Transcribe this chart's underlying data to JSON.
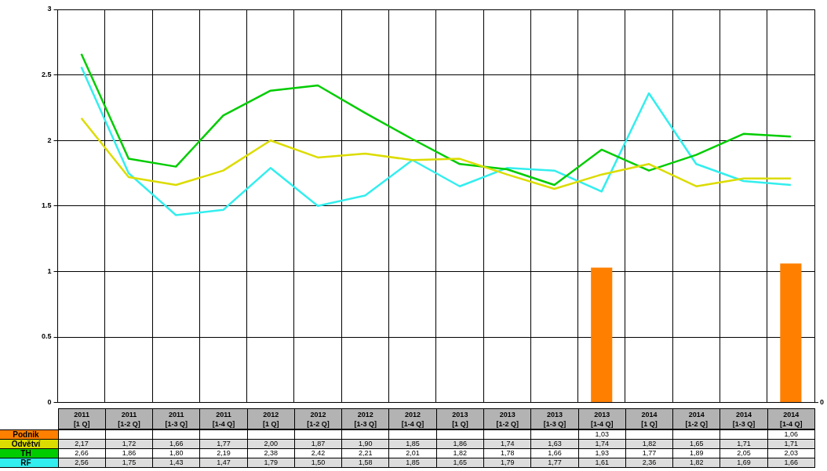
{
  "chart_data": {
    "type": "line",
    "categories": [
      "2011 [1 Q]",
      "2011 [1-2 Q]",
      "2011 [1-3 Q]",
      "2011 [1-4 Q]",
      "2012 [1 Q]",
      "2012 [1-2 Q]",
      "2012 [1-3 Q]",
      "2012 [1-4 Q]",
      "2013 [1 Q]",
      "2013 [1-2 Q]",
      "2013 [1-3 Q]",
      "2013 [1-4 Q]",
      "2014 [1 Q]",
      "2014 [1-2 Q]",
      "2014 [1-3 Q]",
      "2014 [1-4 Q]"
    ],
    "series": [
      {
        "name": "Podnik",
        "type": "bar",
        "color": "#ff7f00",
        "values": [
          null,
          null,
          null,
          null,
          null,
          null,
          null,
          null,
          null,
          null,
          null,
          1.03,
          null,
          null,
          null,
          1.06
        ],
        "value_labels": [
          null,
          null,
          null,
          null,
          null,
          null,
          null,
          null,
          null,
          null,
          null,
          "1,03",
          null,
          null,
          null,
          "1,06"
        ]
      },
      {
        "name": "Odvětví",
        "color": "#dcdc00",
        "values": [
          2.17,
          1.72,
          1.66,
          1.77,
          2.0,
          1.87,
          1.9,
          1.85,
          1.86,
          1.74,
          1.63,
          1.74,
          1.82,
          1.65,
          1.71,
          1.71
        ],
        "value_labels": [
          "2,17",
          "1,72",
          "1,66",
          "1,77",
          "2,00",
          "1,87",
          "1,90",
          "1,85",
          "1,86",
          "1,74",
          "1,63",
          "1,74",
          "1,82",
          "1,65",
          "1,71",
          "1,71"
        ]
      },
      {
        "name": "TH",
        "color": "#00cc00",
        "values": [
          2.66,
          1.86,
          1.8,
          2.19,
          2.38,
          2.42,
          2.21,
          2.01,
          1.82,
          1.78,
          1.66,
          1.93,
          1.77,
          1.89,
          2.05,
          2.03
        ],
        "value_labels": [
          "2,66",
          "1,86",
          "1,80",
          "2,19",
          "2,38",
          "2,42",
          "2,21",
          "2,01",
          "1,82",
          "1,78",
          "1,66",
          "1,93",
          "1,77",
          "1,89",
          "2,05",
          "2,03"
        ]
      },
      {
        "name": "RF",
        "color": "#33eeee",
        "values": [
          2.56,
          1.75,
          1.43,
          1.47,
          1.79,
          1.5,
          1.58,
          1.85,
          1.65,
          1.79,
          1.77,
          1.61,
          2.36,
          1.82,
          1.69,
          1.66
        ],
        "value_labels": [
          "2,56",
          "1,75",
          "1,43",
          "1,47",
          "1,79",
          "1,50",
          "1,58",
          "1,85",
          "1,65",
          "1,79",
          "1,77",
          "1,61",
          "2,36",
          "1,82",
          "1,69",
          "1,66"
        ]
      }
    ],
    "ylim": [
      0,
      3
    ],
    "yticks": [
      0,
      0.5,
      1,
      1.5,
      2,
      2.5,
      3
    ],
    "annotations": [
      "0"
    ],
    "grid": true,
    "legend": false,
    "marker": "none",
    "line_style": "solid"
  }
}
